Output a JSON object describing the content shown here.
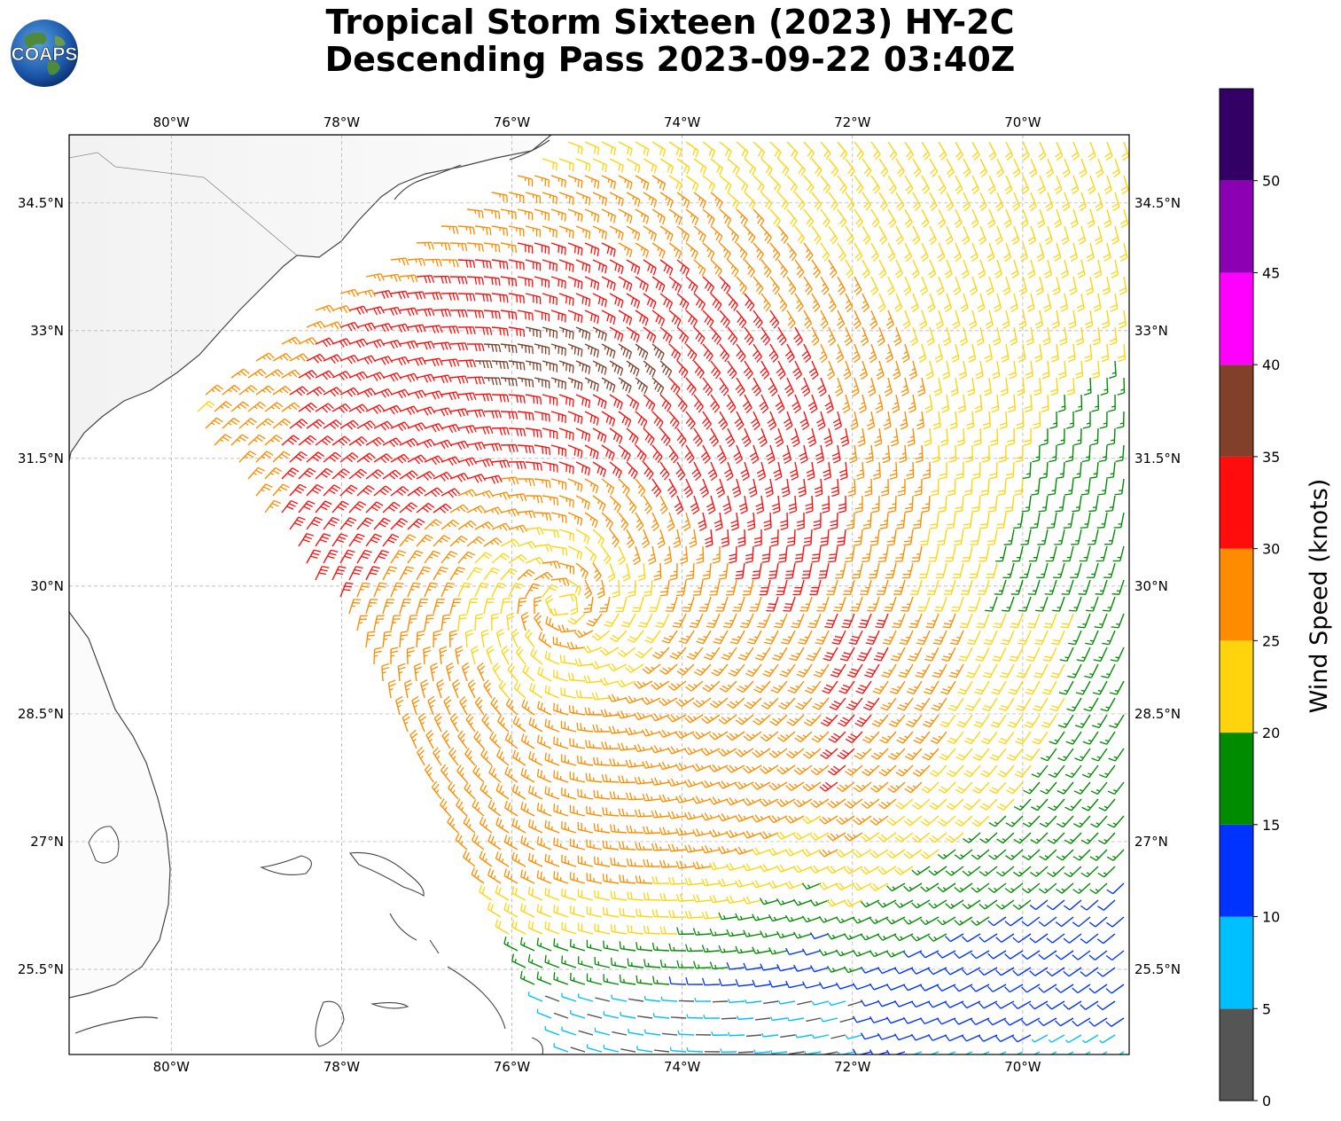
{
  "title": {
    "line1": "Tropical Storm Sixteen (2023) HY-2C",
    "line2": "Descending Pass 2023-09-22 03:40Z"
  },
  "logo": {
    "text": "COAPS"
  },
  "map": {
    "lon_range": [
      -81.2,
      -68.75
    ],
    "lat_range": [
      24.5,
      35.3
    ],
    "lon_ticks": [
      -80,
      -78,
      -76,
      -74,
      -72,
      -70
    ],
    "lon_tick_labels": [
      "80°W",
      "78°W",
      "76°W",
      "74°W",
      "72°W",
      "70°W"
    ],
    "lat_ticks": [
      25.5,
      27,
      28.5,
      30,
      31.5,
      33,
      34.5
    ],
    "lat_tick_labels": [
      "25.5°N",
      "27°N",
      "28.5°N",
      "30°N",
      "31.5°N",
      "33°N",
      "34.5°N"
    ],
    "grid": true,
    "storm_center": {
      "lon": -75.4,
      "lat": 29.8
    },
    "swath_bounds": {
      "west_edge": [
        [
          -79.2,
          31.5
        ],
        [
          -77.9,
          29.3
        ],
        [
          -75.8,
          24.8
        ]
      ],
      "north_edge": [
        [
          -79.2,
          31.5
        ],
        [
          -75.2,
          35.3
        ]
      ]
    },
    "wind_field_note_values": {
      "max_speed_kts": 34,
      "region_max": {
        "lon": -73.5,
        "lat": 32.2
      }
    }
  },
  "colorbar": {
    "label": "Wind Speed (knots)",
    "min": 0,
    "max": 55,
    "ticks": [
      0,
      5,
      10,
      15,
      20,
      25,
      30,
      35,
      40,
      45,
      50
    ],
    "bins": [
      {
        "min": 0,
        "max": 5,
        "color": "#555555"
      },
      {
        "min": 5,
        "max": 10,
        "color": "#00bfff"
      },
      {
        "min": 10,
        "max": 15,
        "color": "#0033ff"
      },
      {
        "min": 15,
        "max": 20,
        "color": "#008c00"
      },
      {
        "min": 20,
        "max": 25,
        "color": "#ffd40d"
      },
      {
        "min": 25,
        "max": 30,
        "color": "#ff8c00"
      },
      {
        "min": 30,
        "max": 35,
        "color": "#ff0d0d"
      },
      {
        "min": 35,
        "max": 40,
        "color": "#80402a"
      },
      {
        "min": 40,
        "max": 45,
        "color": "#ff00ff"
      },
      {
        "min": 45,
        "max": 50,
        "color": "#8c00b3"
      },
      {
        "min": 50,
        "max": 55,
        "color": "#330066"
      }
    ]
  }
}
